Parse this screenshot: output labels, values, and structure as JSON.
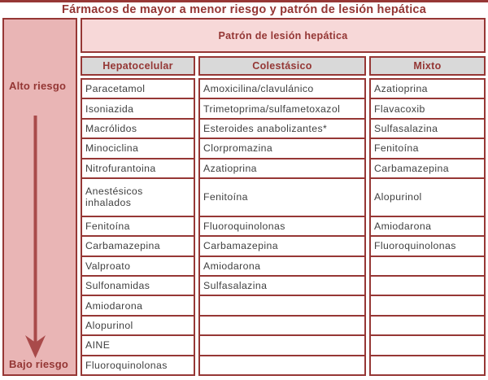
{
  "title": "Fármacos de mayor a menor riesgo y patrón de lesión hepática",
  "risk_axis": {
    "high_label": "Alto riesgo",
    "low_label": "Bajo riesgo"
  },
  "table": {
    "group_header": "Patrón de lesión hepática",
    "columns": [
      "Hepatocelular",
      "Colestásico",
      "Mixto"
    ],
    "rows": [
      [
        "Paracetamol",
        "Amoxicilina/clavulánico",
        "Azatioprina"
      ],
      [
        "Isoniazida",
        "Trimetoprima/sulfametoxazol",
        "Flavacoxib"
      ],
      [
        "Macrólidos",
        "Esteroides anabolizantes*",
        "Sulfasalazina"
      ],
      [
        "Minociclina",
        "Clorpromazina",
        "Fenitoína"
      ],
      [
        "Nitrofurantoina",
        "Azatioprina",
        "Carbamazepina"
      ],
      [
        "Anestésicos inhalados",
        "Fenitoína",
        "Alopurinol"
      ],
      [
        "Fenitoína",
        "Fluoroquinolonas",
        "Amiodarona"
      ],
      [
        "Carbamazepina",
        "Carbamazepina",
        "Fluoroquinolonas"
      ],
      [
        "Valproato",
        "Amiodarona",
        ""
      ],
      [
        "Sulfonamidas",
        "Sulfasalazina",
        ""
      ],
      [
        "Amiodarona",
        "",
        ""
      ],
      [
        "Alopurinol",
        "",
        ""
      ],
      [
        "AINE",
        "",
        ""
      ],
      [
        "Fluoroquinolonas",
        "",
        ""
      ]
    ]
  },
  "colors": {
    "border": "#963735",
    "titletext": "#943634",
    "sidebarbg": "#e9b5b5",
    "patronbg": "#f7d8d8",
    "graybg": "#d9d9d9",
    "celltext": "#3f3f3f",
    "arrow": "#a94a4a"
  }
}
